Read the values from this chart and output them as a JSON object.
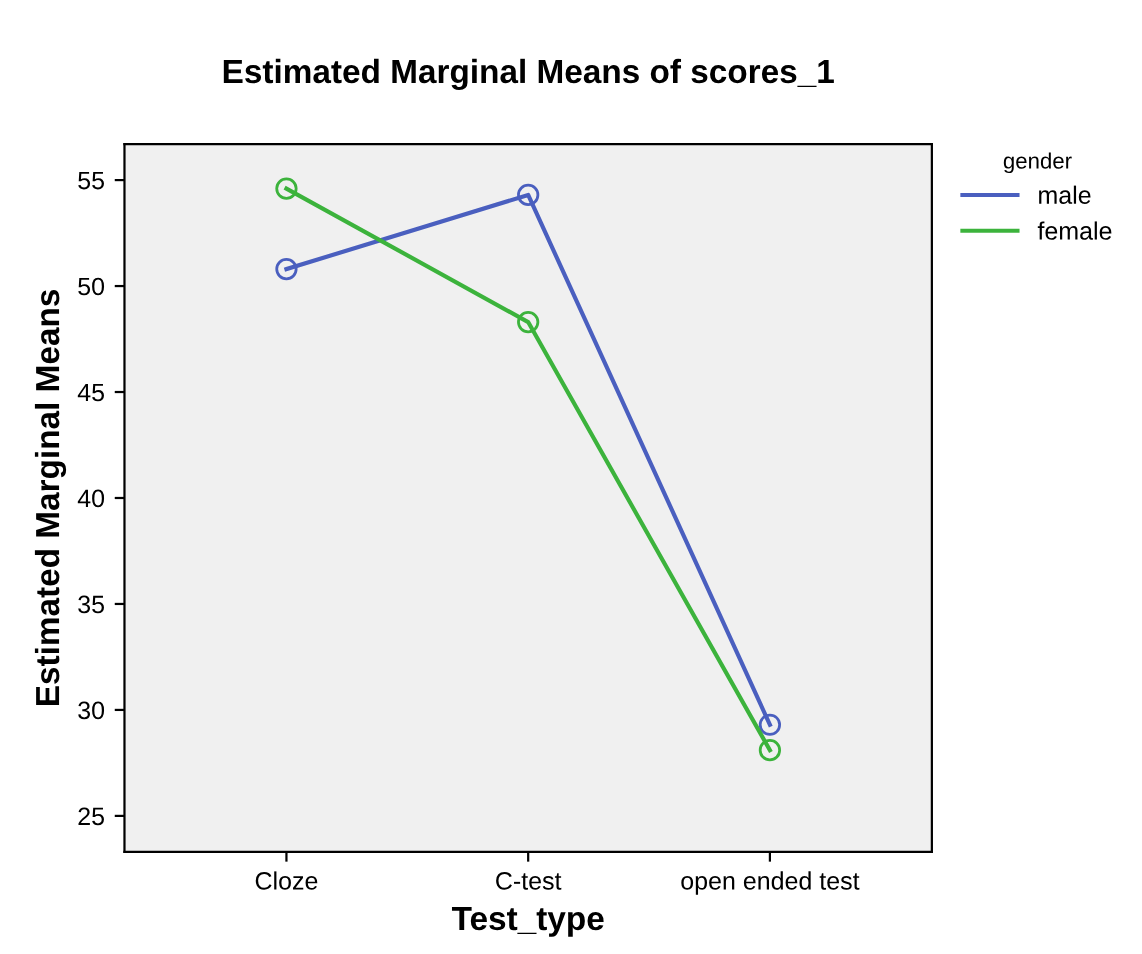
{
  "chart_data": {
    "type": "line",
    "title": "Estimated Marginal Means of scores_1",
    "xlabel": "Test_type",
    "ylabel": "Estimated Marginal Means",
    "legend_title": "gender",
    "categories": [
      "Cloze",
      "C-test",
      "open ended test"
    ],
    "series": [
      {
        "name": "male",
        "color": "#4a5fbf",
        "values": [
          50.8,
          54.3,
          29.3
        ]
      },
      {
        "name": "female",
        "color": "#3cb33c",
        "values": [
          54.6,
          48.3,
          28.1
        ]
      }
    ],
    "ylim": [
      23.3,
      56.7
    ],
    "yticks": [
      25,
      30,
      35,
      40,
      45,
      50,
      55
    ],
    "marker": "circle",
    "line_style": "solid",
    "legend": "top right",
    "grid": false
  }
}
